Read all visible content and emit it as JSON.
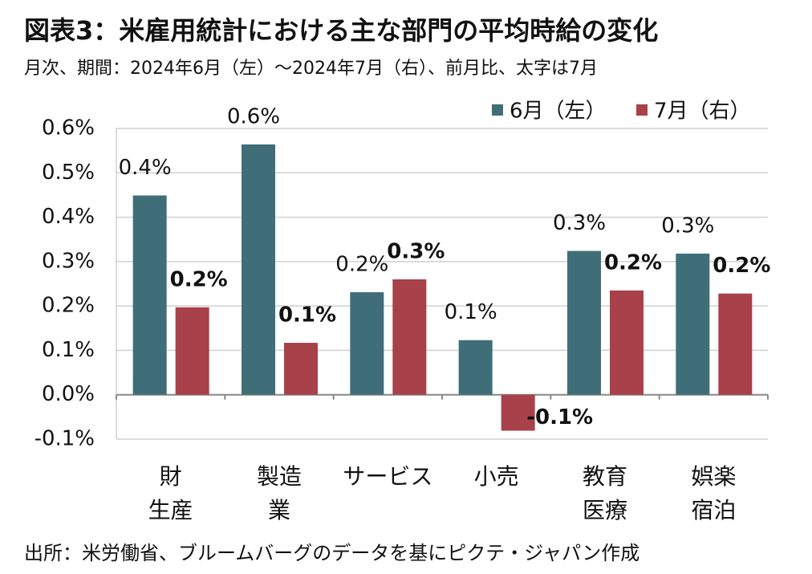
{
  "chart_data": {
    "type": "bar",
    "title": "図表3：米雇用統計における主な部門の平均時給の変化",
    "subtitle": "月次、期間：2024年6月（左）～2024年7月（右）、前月比、太字は7月",
    "source": "出所：米労働省、ブルームバーグのデータを基にピクテ・ジャパン作成",
    "categories": [
      [
        "財",
        "生産"
      ],
      [
        "製造",
        "業"
      ],
      [
        "サービス"
      ],
      [
        "小売"
      ],
      [
        "教育",
        "医療"
      ],
      [
        "娯楽",
        "宿泊"
      ]
    ],
    "series": [
      {
        "name": "6月（左）",
        "color": "#3f6e78",
        "values": [
          0.449,
          0.564,
          0.231,
          0.123,
          0.324,
          0.318
        ],
        "value_labels": [
          "0.4%",
          "0.6%",
          "0.2%",
          "0.1%",
          "0.3%",
          "0.3%"
        ]
      },
      {
        "name": "7月（右）",
        "color": "#a8414a",
        "values": [
          0.197,
          0.117,
          0.26,
          -0.081,
          0.235,
          0.228
        ],
        "value_labels": [
          "0.2%",
          "0.1%",
          "0.3%",
          "-0.1%",
          "0.2%",
          "0.2%"
        ]
      }
    ],
    "ylim": [
      -0.1,
      0.6
    ],
    "yticks": [
      {
        "value": -0.1,
        "label": "-0.1%"
      },
      {
        "value": 0,
        "label": "0.0%"
      },
      {
        "value": 0.1,
        "label": "0.1%"
      },
      {
        "value": 0.2,
        "label": "0.2%"
      },
      {
        "value": 0.3,
        "label": "0.3%"
      },
      {
        "value": 0.4,
        "label": "0.4%"
      },
      {
        "value": 0.5,
        "label": "0.5%"
      },
      {
        "value": 0.6,
        "label": "0.6%"
      }
    ],
    "grid": true,
    "legend": "top-right"
  }
}
